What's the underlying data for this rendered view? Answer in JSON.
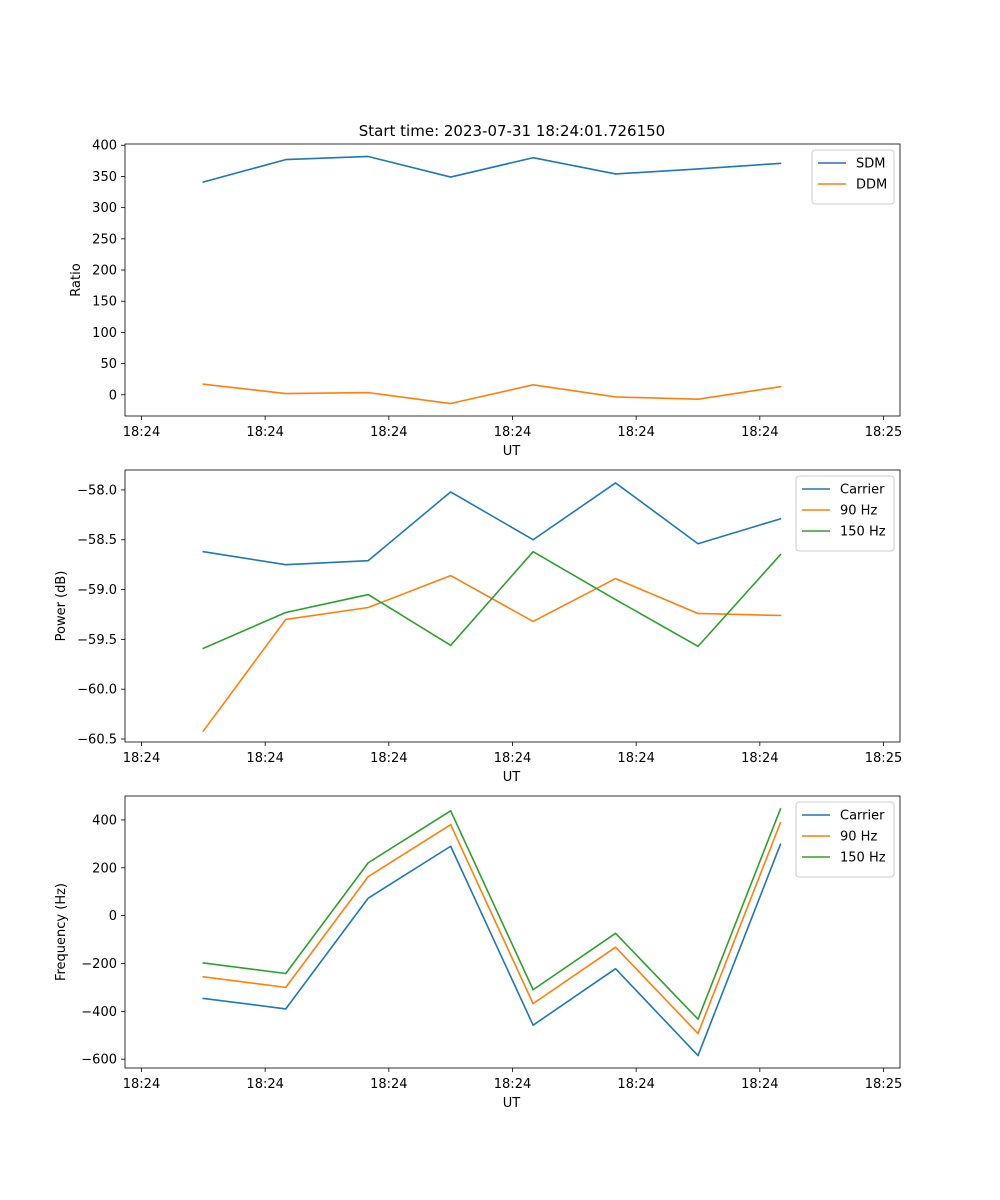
{
  "figure": {
    "title": "Start time: 2023-07-31 18:24:01.726150",
    "colors": {
      "blue": "#1f77b4",
      "orange": "#ff7f0e",
      "green": "#2ca02c"
    }
  },
  "chart_data": [
    {
      "type": "line",
      "title": "Start time: 2023-07-31 18:24:01.726150",
      "xlabel": "UT",
      "ylabel": "Ratio",
      "x_tick_labels": [
        "18:24",
        "18:24",
        "18:24",
        "18:24",
        "18:24",
        "18:24",
        "18:25"
      ],
      "x_tick_positions": [
        -0.5,
        1,
        2.5,
        4,
        5.5,
        7,
        8.5
      ],
      "x": [
        0.25,
        1.25,
        2.25,
        3.25,
        4.25,
        5.25,
        6.25,
        7.25
      ],
      "xlim": [
        -0.7,
        8.7
      ],
      "ylim": [
        -34,
        402
      ],
      "yticks": [
        0,
        50,
        100,
        150,
        200,
        250,
        300,
        350,
        400
      ],
      "y_tick_labels": [
        "0",
        "50",
        "100",
        "150",
        "200",
        "250",
        "300",
        "350",
        "400"
      ],
      "legend_position": "top-right",
      "series": [
        {
          "name": "SDM",
          "color": "#1f77b4",
          "values": [
            341,
            377,
            382,
            349,
            380,
            354,
            362,
            371
          ]
        },
        {
          "name": "DDM",
          "color": "#ff7f0e",
          "values": [
            17,
            2,
            3.5,
            -14,
            16,
            -3.5,
            -7,
            13
          ]
        }
      ]
    },
    {
      "type": "line",
      "title": "",
      "xlabel": "UT",
      "ylabel": "Power (dB)",
      "x_tick_labels": [
        "18:24",
        "18:24",
        "18:24",
        "18:24",
        "18:24",
        "18:24",
        "18:25"
      ],
      "x_tick_positions": [
        -0.5,
        1,
        2.5,
        4,
        5.5,
        7,
        8.5
      ],
      "x": [
        0.25,
        1.25,
        2.25,
        3.25,
        4.25,
        5.25,
        6.25,
        7.25
      ],
      "xlim": [
        -0.7,
        8.7
      ],
      "ylim": [
        -60.53,
        -57.8
      ],
      "yticks": [
        -60.5,
        -60.0,
        -59.5,
        -59.0,
        -58.5,
        -58.0
      ],
      "y_tick_labels": [
        "−60.5",
        "−60.0",
        "−59.5",
        "−59.0",
        "−58.5",
        "−58.0"
      ],
      "legend_position": "top-right",
      "series": [
        {
          "name": "Carrier",
          "color": "#1f77b4",
          "values": [
            -58.62,
            -58.75,
            -58.71,
            -58.02,
            -58.5,
            -57.93,
            -58.54,
            -58.29
          ]
        },
        {
          "name": "90 Hz",
          "color": "#ff7f0e",
          "values": [
            -60.42,
            -59.3,
            -59.18,
            -58.86,
            -59.32,
            -58.89,
            -59.24,
            -59.26
          ]
        },
        {
          "name": "150 Hz",
          "color": "#2ca02c",
          "values": [
            -59.59,
            -59.23,
            -59.05,
            -59.56,
            -58.62,
            -59.1,
            -59.57,
            -58.65
          ]
        }
      ]
    },
    {
      "type": "line",
      "title": "",
      "xlabel": "UT",
      "ylabel": "Frequency (Hz)",
      "x_tick_labels": [
        "18:24",
        "18:24",
        "18:24",
        "18:24",
        "18:24",
        "18:24",
        "18:25"
      ],
      "x_tick_positions": [
        -0.5,
        1,
        2.5,
        4,
        5.5,
        7,
        8.5
      ],
      "x": [
        0.25,
        1.25,
        2.25,
        3.25,
        4.25,
        5.25,
        6.25,
        7.25
      ],
      "xlim": [
        -0.7,
        8.7
      ],
      "ylim": [
        -637,
        500
      ],
      "yticks": [
        -600,
        -400,
        -200,
        0,
        200,
        400
      ],
      "y_tick_labels": [
        "−600",
        "−400",
        "−200",
        "0",
        "200",
        "400"
      ],
      "legend_position": "top-right",
      "series": [
        {
          "name": "Carrier",
          "color": "#1f77b4",
          "values": [
            -346,
            -390,
            73,
            290,
            -458,
            -222,
            -585,
            298
          ]
        },
        {
          "name": "90 Hz",
          "color": "#ff7f0e",
          "values": [
            -256,
            -300,
            163,
            380,
            -368,
            -132,
            -493,
            388
          ]
        },
        {
          "name": "150 Hz",
          "color": "#2ca02c",
          "values": [
            -198,
            -242,
            221,
            438,
            -310,
            -74,
            -433,
            446
          ]
        }
      ]
    }
  ]
}
